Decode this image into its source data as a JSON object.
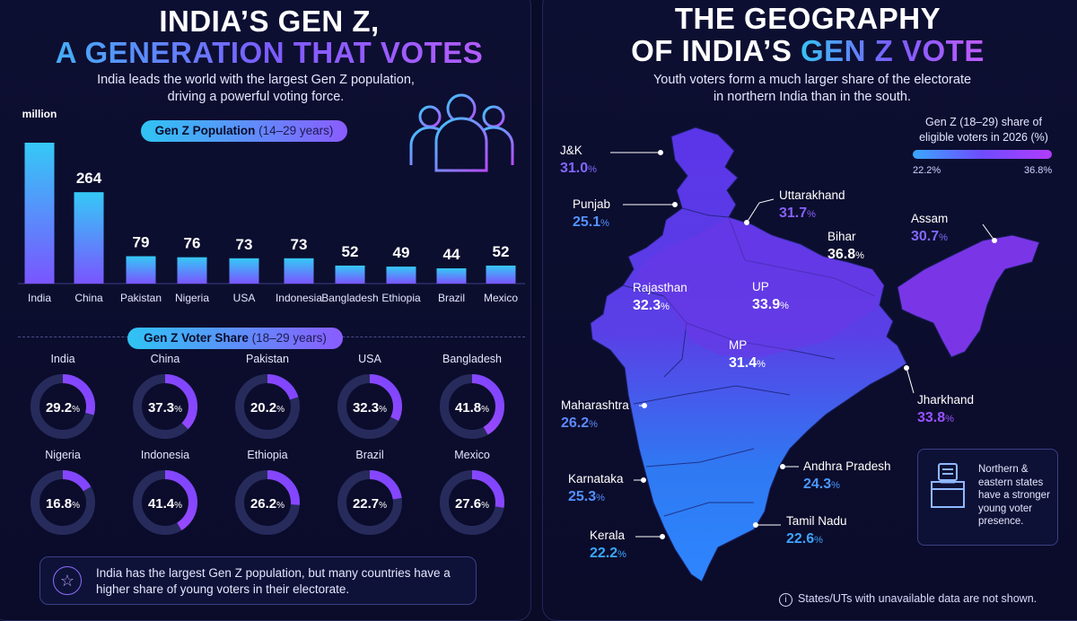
{
  "left": {
    "title_line1": "INDIA’S GEN Z,",
    "title_line2": "A GENERATION THAT VOTES",
    "subtitle_line1": "India leads the world with the largest Gen Z population,",
    "subtitle_line2": "driving a powerful voting force.",
    "population_pill_main": "Gen Z Population",
    "population_pill_range": "(14–29 years)",
    "share_pill_main": "Gen Z Voter Share",
    "share_pill_range": "(18–29 years)",
    "note_text": "India has the largest Gen Z population, but many countries have a higher share of young voters in their electorate.",
    "icon_people": "people-group-icon",
    "icon_note": "star-icon"
  },
  "right": {
    "title_line1": "THE GEOGRAPHY",
    "title_line2a": "OF INDIA’S ",
    "title_line2b": "GEN Z VOTE",
    "subtitle_line1": "Youth voters form a much larger share of the electorate",
    "subtitle_line2": "in northern India than in the south.",
    "legend_title_line1": "Gen Z (18–29) share of",
    "legend_title_line2": "eligible voters in 2026 (%)",
    "legend_min": "22.2%",
    "legend_max": "36.8%",
    "infobox_text": "Northern & eastern states have a stronger young voter presence.",
    "footnote": "States/UTs with unavailable data are not shown.",
    "icon_ballot": "ballot-box-icon",
    "icon_info": "info-icon"
  },
  "colors": {
    "accent_cyan": "#37c3f5",
    "accent_purple": "#8a5cff",
    "background": "#0a0b26"
  },
  "chart_data": [
    {
      "type": "bar",
      "title": "Gen Z Population (14–29 years)",
      "unit": "million",
      "categories": [
        "India",
        "China",
        "Pakistan",
        "Nigeria",
        "USA",
        "Indonesia",
        "Bangladesh",
        "Ethiopia",
        "Brazil",
        "Mexico"
      ],
      "values": [
        407,
        264,
        79,
        76,
        73,
        73,
        52,
        49,
        44,
        52
      ]
    },
    {
      "type": "pie",
      "title": "Gen Z Voter Share (18–29 years)",
      "categories": [
        "India",
        "China",
        "Pakistan",
        "USA",
        "Bangladesh",
        "Nigeria",
        "Indonesia",
        "Ethiopia",
        "Brazil",
        "Mexico"
      ],
      "values": [
        29.2,
        37.3,
        20.2,
        32.3,
        41.8,
        16.8,
        41.4,
        26.2,
        22.7,
        27.6
      ]
    },
    {
      "type": "map",
      "title": "Gen Z (18–29) share of eligible voters in 2026 (%)",
      "categories": [
        "J&K",
        "Punjab",
        "Uttarakhand",
        "Assam",
        "Bihar",
        "Rajasthan",
        "UP",
        "MP",
        "Jharkhand",
        "Maharashtra",
        "Andhra Pradesh",
        "Karnataka",
        "Tamil Nadu",
        "Kerala"
      ],
      "values": [
        31.0,
        25.1,
        31.7,
        30.7,
        36.8,
        32.3,
        33.9,
        31.4,
        33.8,
        26.2,
        24.3,
        25.3,
        22.6,
        22.2
      ],
      "range": [
        22.2,
        36.8
      ]
    }
  ]
}
